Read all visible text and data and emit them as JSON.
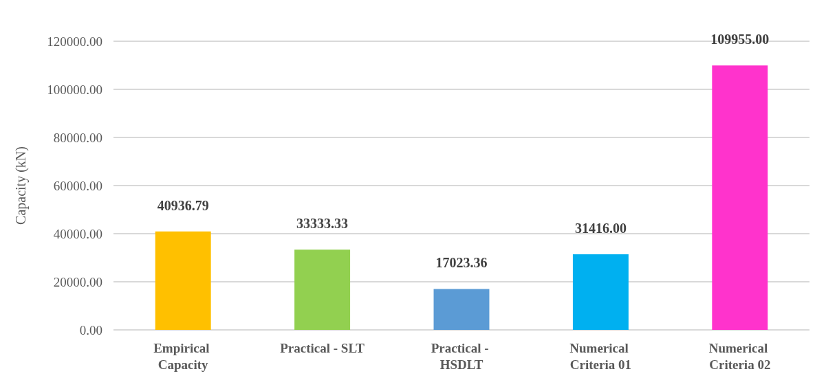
{
  "chart_data": {
    "type": "bar",
    "ylabel": "Capacity (kN)",
    "categories": [
      "Empirical Capacity",
      "Practical - SLT",
      "Practical - HSDLT",
      "Numerical Criteria 01",
      "Numerical Criteria 02"
    ],
    "values": [
      40936.79,
      33333.33,
      17023.36,
      31416.0,
      109955.0
    ],
    "colors": [
      "#ffc000",
      "#92d050",
      "#5b9bd5",
      "#00b0f0",
      "#ff33cc"
    ],
    "value_labels": [
      "40936.79",
      "33333.33",
      "17023.36",
      "31416.00",
      "109955.00"
    ],
    "ylim": [
      0,
      120000
    ],
    "yticks": [
      {
        "value": 0,
        "label": "0.00"
      },
      {
        "value": 20000,
        "label": "20000.00"
      },
      {
        "value": 40000,
        "label": "40000.00"
      },
      {
        "value": 60000,
        "label": "60000.00"
      },
      {
        "value": 80000,
        "label": "80000.00"
      },
      {
        "value": 100000,
        "label": "100000.00"
      },
      {
        "value": 120000,
        "label": "120000.00"
      }
    ],
    "grid": "y"
  }
}
